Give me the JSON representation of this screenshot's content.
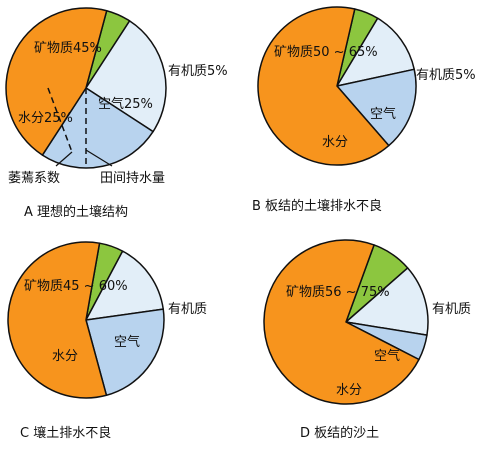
{
  "colors": {
    "mineral": "#F7941D",
    "organic": "#8CC63F",
    "water": "#B8D3EE",
    "air": "#E2EEF8",
    "stroke": "#111111"
  },
  "chart_data": [
    {
      "type": "pie",
      "caption": "A 理想的土壤结构",
      "slices": [
        {
          "key": "organic",
          "label": "有机质5%",
          "value": 5,
          "color": "#8CC63F"
        },
        {
          "key": "air",
          "label": "空气25%",
          "value": 25,
          "color": "#E2EEF8"
        },
        {
          "key": "water",
          "label": "水分25%",
          "value": 25,
          "color": "#B8D3EE"
        },
        {
          "key": "mineral",
          "label": "矿物质45%",
          "value": 45,
          "color": "#F7941D"
        }
      ],
      "annotations": [
        "萎蔫系数",
        "田间持水量"
      ]
    },
    {
      "type": "pie",
      "caption": "B 板结的土壤排水不良",
      "slices": [
        {
          "key": "organic",
          "label": "有机质5%",
          "value": 5,
          "color": "#8CC63F"
        },
        {
          "key": "air",
          "label": "空气",
          "value": 13,
          "color": "#E2EEF8"
        },
        {
          "key": "water",
          "label": "水分",
          "value": 17,
          "color": "#B8D3EE"
        },
        {
          "key": "mineral",
          "label": "矿物质50 ~ 65%",
          "value": 65,
          "color": "#F7941D"
        }
      ]
    },
    {
      "type": "pie",
      "caption": "C 壤土排水不良",
      "slices": [
        {
          "key": "organic",
          "label": "有机质",
          "value": 5,
          "color": "#8CC63F"
        },
        {
          "key": "air",
          "label": "空气",
          "value": 15,
          "color": "#E2EEF8"
        },
        {
          "key": "water",
          "label": "水分",
          "value": 23,
          "color": "#B8D3EE"
        },
        {
          "key": "mineral",
          "label": "矿物质45 ~ 60%",
          "value": 57,
          "color": "#F7941D"
        }
      ]
    },
    {
      "type": "pie",
      "caption": "D 板结的沙土",
      "slices": [
        {
          "key": "organic",
          "label": "有机质",
          "value": 8,
          "color": "#8CC63F"
        },
        {
          "key": "air",
          "label": "空气",
          "value": 14,
          "color": "#E2EEF8"
        },
        {
          "key": "water",
          "label": "水分",
          "value": 5,
          "color": "#B8D3EE"
        },
        {
          "key": "mineral",
          "label": "矿物质56 ~ 75%",
          "value": 73,
          "color": "#F7941D"
        }
      ]
    }
  ]
}
